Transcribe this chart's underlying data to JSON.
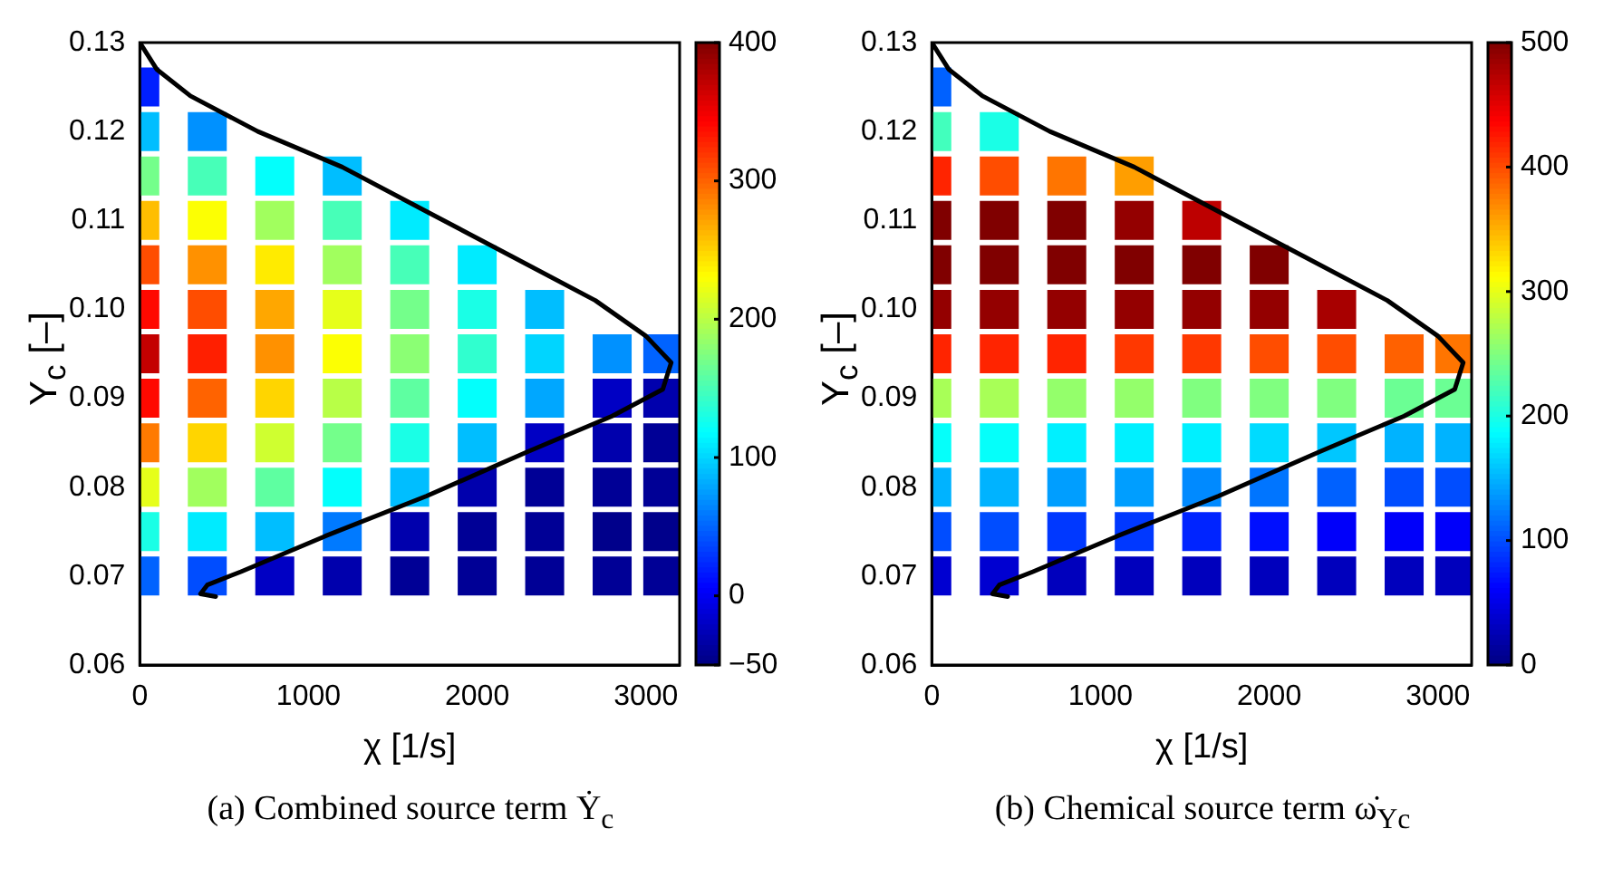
{
  "chart_data": [
    {
      "type": "scatter",
      "title": "(a) Combined source term Ẏ$_{c}$",
      "xlabel": "χ [1/s]",
      "ylabel": "Y$_{c}$ [–]",
      "xlim": [
        0,
        3200
      ],
      "xticks": [
        0,
        1000,
        2000,
        3000
      ],
      "ylim": [
        0.06,
        0.13
      ],
      "yticks": [
        0.06,
        0.07,
        0.08,
        0.09,
        {
          "value": 0.1,
          "label": "0.10"
        },
        0.11,
        0.12,
        0.13
      ],
      "clim": [
        -50,
        400
      ],
      "cticks": [
        -50,
        0,
        100,
        200,
        300,
        400
      ],
      "grid": false,
      "legend": false,
      "series": [
        {
          "marker": "square",
          "colors": [
            "#001fff",
            "#00beff",
            "#0091ff",
            "#74ff8b",
            "#47ffb8",
            "#03fffc",
            "#00beff",
            "#ffbe00",
            "#fcff03",
            "#a1ff5e",
            "#47ffb8",
            "#00ebff",
            "#ff4d00",
            "#ff9100",
            "#ffeb00",
            "#a1ff5e",
            "#47ffb8",
            "#00ebff",
            "#ff0900",
            "#ff4d00",
            "#ffa700",
            "#e6ff1a",
            "#74ff8b",
            "#1affe6",
            "#00beff",
            "#c40000",
            "#ff1f00",
            "#ff9100",
            "#fcff03",
            "#8bff74",
            "#30ffcf",
            "#00d5ff",
            "#0091ff",
            "#0063ff",
            "#ff0900",
            "#ff6300",
            "#ffd500",
            "#b8ff47",
            "#5effa1",
            "#03fffc",
            "#00a7ff",
            "#0000c4",
            "#0000ad",
            "#ff7a00",
            "#ffd500",
            "#cfff30",
            "#74ff8b",
            "#1affe6",
            "#00beff",
            "#0000c4",
            "#0000ad",
            "#000096",
            "#e6ff1a",
            "#a1ff5e",
            "#5effa1",
            "#03fffc",
            "#00beff",
            "#0000ad",
            "#000096",
            "#000096",
            "#000096",
            "#1affe6",
            "#00ebff",
            "#00beff",
            "#007aff",
            "#0000ad",
            "#000096",
            "#000096",
            "#00008b",
            "#00008b",
            "#0063ff",
            "#004dff",
            "#0000c4",
            "#0000ad",
            "#000096",
            "#000096",
            "#000096",
            "#000096",
            "#000096"
          ],
          "x": [
            0,
            0,
            400,
            0,
            400,
            800,
            1200,
            0,
            400,
            800,
            1200,
            1600,
            0,
            400,
            800,
            1200,
            1600,
            2000,
            0,
            400,
            800,
            1200,
            1600,
            2000,
            2400,
            0,
            400,
            800,
            1200,
            1600,
            2000,
            2400,
            2800,
            3100,
            0,
            400,
            800,
            1200,
            1600,
            2000,
            2400,
            2800,
            3100,
            0,
            400,
            800,
            1200,
            1600,
            2000,
            2400,
            2800,
            3100,
            0,
            400,
            800,
            1200,
            1600,
            2000,
            2400,
            2800,
            3100,
            0,
            400,
            800,
            1200,
            1600,
            2000,
            2400,
            2800,
            3100,
            0,
            400,
            800,
            1200,
            1600,
            2000,
            2400,
            2800,
            3100
          ],
          "values": [
            0.125,
            0.12,
            0.12,
            0.115,
            0.115,
            0.115,
            0.115,
            0.11,
            0.11,
            0.11,
            0.11,
            0.11,
            0.105,
            0.105,
            0.105,
            0.105,
            0.105,
            0.105,
            0.1,
            0.1,
            0.1,
            0.1,
            0.1,
            0.1,
            0.1,
            0.095,
            0.095,
            0.095,
            0.095,
            0.095,
            0.095,
            0.095,
            0.095,
            0.095,
            0.09,
            0.09,
            0.09,
            0.09,
            0.09,
            0.09,
            0.09,
            0.09,
            0.09,
            0.085,
            0.085,
            0.085,
            0.085,
            0.085,
            0.085,
            0.085,
            0.085,
            0.085,
            0.08,
            0.08,
            0.08,
            0.08,
            0.08,
            0.08,
            0.08,
            0.08,
            0.08,
            0.075,
            0.075,
            0.075,
            0.075,
            0.075,
            0.075,
            0.075,
            0.075,
            0.075,
            0.07,
            0.07,
            0.07,
            0.07,
            0.07,
            0.07,
            0.07,
            0.07,
            0.07
          ],
          "cvalues": [
            20,
            90,
            70,
            170,
            150,
            120,
            90,
            260,
            230,
            190,
            150,
            110,
            310,
            280,
            240,
            190,
            150,
            110,
            340,
            310,
            270,
            220,
            170,
            130,
            90,
            370,
            330,
            280,
            230,
            180,
            140,
            100,
            70,
            50,
            340,
            300,
            250,
            200,
            160,
            120,
            80,
            -20,
            -30,
            290,
            250,
            210,
            170,
            130,
            90,
            -20,
            -30,
            -40,
            220,
            190,
            160,
            120,
            90,
            -30,
            -40,
            -40,
            -40,
            130,
            110,
            90,
            60,
            -30,
            -40,
            -40,
            -45,
            -45,
            50,
            40,
            -20,
            -30,
            -40,
            -40,
            -40,
            -40,
            -40
          ]
        },
        {
          "type": "line",
          "color": "#000000",
          "x": [
            0,
            100,
            300,
            700,
            1200,
            1700,
            2200,
            2700,
            3000,
            3150,
            3100,
            2800,
            2300,
            1700,
            1100,
            600,
            400,
            360,
            450
          ],
          "values": [
            0.13,
            0.127,
            0.124,
            0.12,
            0.116,
            0.111,
            0.106,
            0.101,
            0.097,
            0.094,
            0.091,
            0.088,
            0.084,
            0.079,
            0.0745,
            0.0705,
            0.069,
            0.068,
            0.0677
          ]
        }
      ]
    },
    {
      "type": "scatter",
      "title": "(b) Chemical source term ω̇$_{Yc}$",
      "xlabel": "χ [1/s]",
      "ylabel": "Y$_{c}$ [–]",
      "xlim": [
        0,
        3200
      ],
      "xticks": [
        0,
        1000,
        2000,
        3000
      ],
      "ylim": [
        0.06,
        0.13
      ],
      "yticks": [
        0.06,
        0.07,
        0.08,
        0.09,
        {
          "value": 0.1,
          "label": "0.10"
        },
        0.11,
        0.12,
        0.13
      ],
      "clim": [
        0,
        500
      ],
      "cticks": [
        0,
        100,
        200,
        300,
        400,
        500
      ],
      "grid": false,
      "legend": false,
      "series": [
        {
          "marker": "square",
          "colors": [
            "#0061ff",
            "#42ffbd",
            "#1affe6",
            "#ff2400",
            "#ff4d00",
            "#ff7500",
            "#ff9e00",
            "#800000",
            "#800000",
            "#800000",
            "#940000",
            "#bd0000",
            "#800000",
            "#800000",
            "#800000",
            "#800000",
            "#800000",
            "#800000",
            "#940000",
            "#940000",
            "#940000",
            "#940000",
            "#940000",
            "#940000",
            "#a80000",
            "#ff2400",
            "#ff2400",
            "#ff2400",
            "#ff3800",
            "#ff3800",
            "#ff4d00",
            "#ff4d00",
            "#ff6100",
            "#ff7500",
            "#a8ff57",
            "#a8ff57",
            "#94ff6b",
            "#94ff6b",
            "#80ff80",
            "#80ff80",
            "#80ff80",
            "#6bff94",
            "#6bff94",
            "#05fffa",
            "#05fffa",
            "#00f0ff",
            "#00f0ff",
            "#00f0ff",
            "#00dbff",
            "#00c7ff",
            "#00b3ff",
            "#00b3ff",
            "#00b3ff",
            "#00b3ff",
            "#009eff",
            "#009eff",
            "#008aff",
            "#0075ff",
            "#0061ff",
            "#004dff",
            "#004dff",
            "#004dff",
            "#004dff",
            "#0038ff",
            "#0038ff",
            "#0024ff",
            "#000fff",
            "#0000fa",
            "#0000fa",
            "#0000fa",
            "#0000d1",
            "#0000d1",
            "#0000bd",
            "#0000bd",
            "#0000bd",
            "#0000bd",
            "#0000bd",
            "#0000bd",
            "#0000bd"
          ],
          "x": [
            0,
            0,
            400,
            0,
            400,
            800,
            1200,
            0,
            400,
            800,
            1200,
            1600,
            0,
            400,
            800,
            1200,
            1600,
            2000,
            0,
            400,
            800,
            1200,
            1600,
            2000,
            2400,
            0,
            400,
            800,
            1200,
            1600,
            2000,
            2400,
            2800,
            3100,
            0,
            400,
            800,
            1200,
            1600,
            2000,
            2400,
            2800,
            3100,
            0,
            400,
            800,
            1200,
            1600,
            2000,
            2400,
            2800,
            3100,
            0,
            400,
            800,
            1200,
            1600,
            2000,
            2400,
            2800,
            3100,
            0,
            400,
            800,
            1200,
            1600,
            2000,
            2400,
            2800,
            3100,
            0,
            400,
            800,
            1200,
            1600,
            2000,
            2400,
            2800,
            3100
          ],
          "values": [
            0.125,
            0.12,
            0.12,
            0.115,
            0.115,
            0.115,
            0.115,
            0.11,
            0.11,
            0.11,
            0.11,
            0.11,
            0.105,
            0.105,
            0.105,
            0.105,
            0.105,
            0.105,
            0.1,
            0.1,
            0.1,
            0.1,
            0.1,
            0.1,
            0.1,
            0.095,
            0.095,
            0.095,
            0.095,
            0.095,
            0.095,
            0.095,
            0.095,
            0.095,
            0.09,
            0.09,
            0.09,
            0.09,
            0.09,
            0.09,
            0.09,
            0.09,
            0.09,
            0.085,
            0.085,
            0.085,
            0.085,
            0.085,
            0.085,
            0.085,
            0.085,
            0.085,
            0.08,
            0.08,
            0.08,
            0.08,
            0.08,
            0.08,
            0.08,
            0.08,
            0.08,
            0.075,
            0.075,
            0.075,
            0.075,
            0.075,
            0.075,
            0.075,
            0.075,
            0.075,
            0.07,
            0.07,
            0.07,
            0.07,
            0.07,
            0.07,
            0.07,
            0.07,
            0.07
          ],
          "cvalues": [
            110,
            220,
            200,
            420,
            400,
            380,
            360,
            500,
            500,
            500,
            490,
            470,
            500,
            500,
            500,
            500,
            500,
            500,
            490,
            490,
            490,
            490,
            490,
            490,
            480,
            420,
            420,
            420,
            410,
            410,
            400,
            400,
            390,
            380,
            270,
            270,
            260,
            260,
            250,
            250,
            250,
            240,
            240,
            190,
            190,
            180,
            180,
            180,
            170,
            160,
            150,
            150,
            150,
            150,
            140,
            140,
            130,
            120,
            110,
            100,
            100,
            100,
            100,
            90,
            90,
            80,
            70,
            60,
            60,
            60,
            40,
            40,
            30,
            30,
            30,
            30,
            30,
            30,
            30
          ]
        },
        {
          "type": "line",
          "color": "#000000",
          "x": [
            0,
            100,
            300,
            700,
            1200,
            1700,
            2200,
            2700,
            3000,
            3150,
            3100,
            2800,
            2300,
            1700,
            1100,
            600,
            400,
            360,
            450
          ],
          "values": [
            0.13,
            0.127,
            0.124,
            0.12,
            0.116,
            0.111,
            0.106,
            0.101,
            0.097,
            0.094,
            0.091,
            0.088,
            0.084,
            0.079,
            0.0745,
            0.0705,
            0.069,
            0.068,
            0.0677
          ]
        }
      ]
    }
  ]
}
